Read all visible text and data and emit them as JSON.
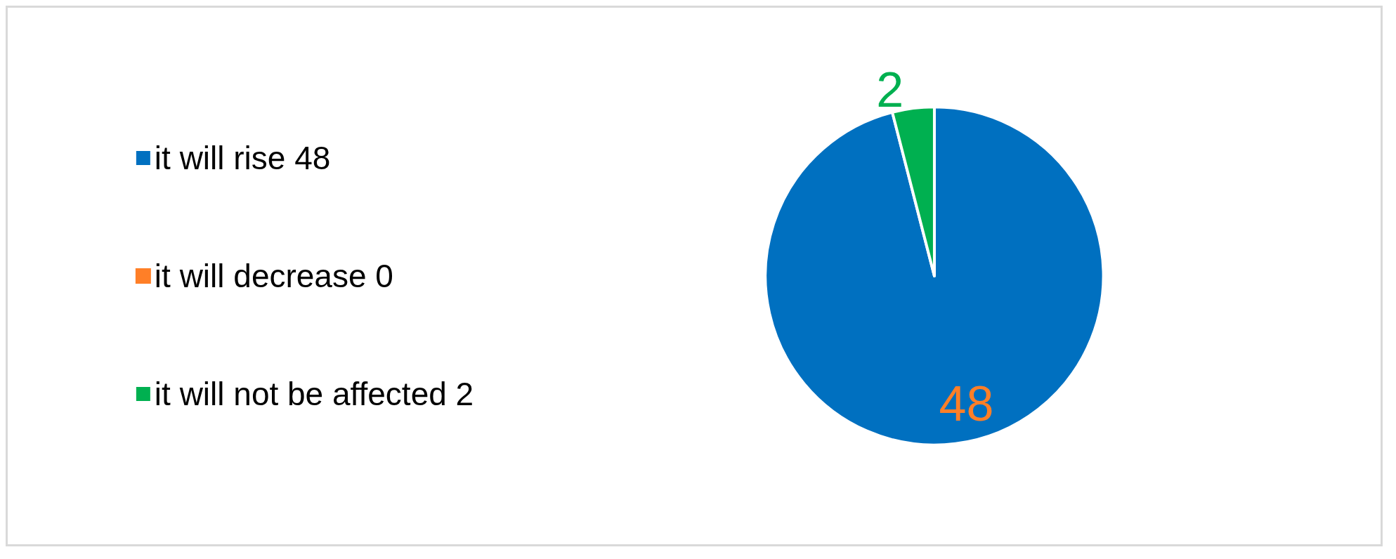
{
  "chart_data": {
    "type": "pie",
    "categories": [
      "it will rise 48",
      "it will decrease 0",
      "it will not be affected 2"
    ],
    "values": [
      48,
      0,
      2
    ],
    "colors": [
      "#0070c0",
      "#ff7f27",
      "#00b050"
    ],
    "value_labels": [
      "48",
      null,
      "2"
    ],
    "legend": "left"
  }
}
